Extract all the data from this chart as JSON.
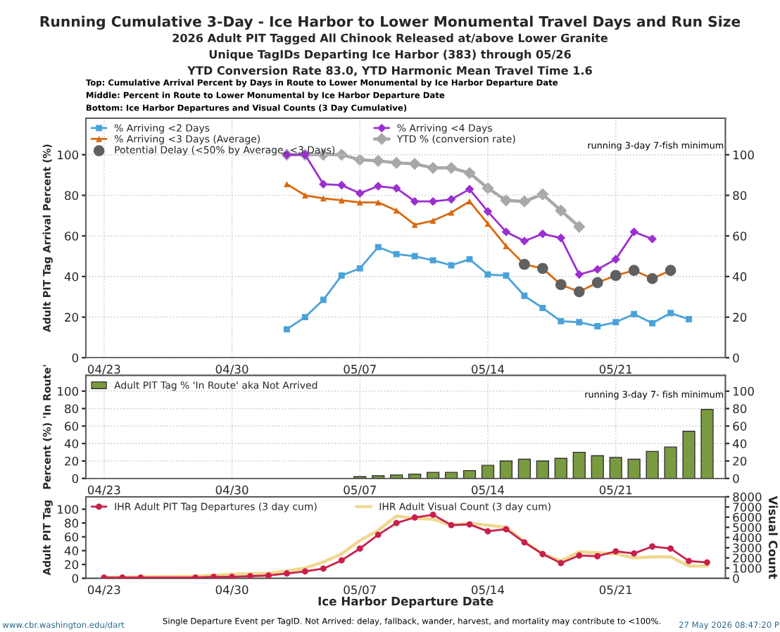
{
  "chart_data": [
    {
      "type": "line",
      "title": "Running Cumulative 3-Day - Ice Harbor to Lower Monumental Travel Days and Run Size",
      "subtitle": "2026 Adult PIT Tagged All Chinook Released at/above Lower Granite\nUnique TagIDs Departing Ice Harbor (383) through 05/26\nYTD Conversion Rate 83.0, YTD Harmonic Mean Travel Time 1.6",
      "ylabel": "Adult PIT Tag Arrival Percent (%)",
      "xlim": [
        "2026-04-22",
        "2026-05-27"
      ],
      "xticks": [
        {
          "value": "2026-04-23",
          "label": "04/23"
        },
        {
          "value": "2026-04-30",
          "label": "04/30"
        },
        {
          "value": "2026-05-07",
          "label": "05/07"
        },
        {
          "value": "2026-05-14",
          "label": "05/14"
        },
        {
          "value": "2026-05-21",
          "label": "05/21"
        }
      ],
      "ylim": [
        0,
        118
      ],
      "yticks": [
        0,
        20,
        40,
        60,
        80,
        100
      ],
      "y2lim": [
        0,
        118
      ],
      "y2ticks": [
        0,
        20,
        40,
        60,
        80,
        100
      ],
      "grid": true,
      "legend": "top left",
      "annotations": [
        "Top: Cumulative Arrival Percent by Days in Route to Lower Monumental by Ice Harbor Departure Date",
        "Middle: Percent in Route to Lower Monumental by Ice Harbor Departure Date",
        "Bottom: Ice Harbor Departures and Visual Counts (3 Day Cumulative)",
        "running 3-day 7-fish minimum"
      ],
      "series": [
        {
          "name": "% Arriving <2 Days",
          "color": "#4aa3d8",
          "marker": "square",
          "x": [
            "2026-05-03",
            "2026-05-04",
            "2026-05-05",
            "2026-05-06",
            "2026-05-07",
            "2026-05-08",
            "2026-05-09",
            "2026-05-10",
            "2026-05-11",
            "2026-05-12",
            "2026-05-13",
            "2026-05-14",
            "2026-05-15",
            "2026-05-16",
            "2026-05-17",
            "2026-05-18",
            "2026-05-19",
            "2026-05-20",
            "2026-05-21",
            "2026-05-22",
            "2026-05-23",
            "2026-05-24",
            "2026-05-25"
          ],
          "values": [
            14,
            20,
            28.5,
            40.5,
            44,
            54.5,
            51,
            50,
            48,
            45.5,
            48.5,
            41,
            40.5,
            30.5,
            24.5,
            18,
            17.5,
            15.5,
            17.5,
            21.5,
            17,
            22,
            19
          ]
        },
        {
          "name": "% Arriving <3 Days (Average)",
          "color": "#d96a10",
          "marker": "triangle",
          "x": [
            "2026-05-03",
            "2026-05-04",
            "2026-05-05",
            "2026-05-06",
            "2026-05-07",
            "2026-05-08",
            "2026-05-09",
            "2026-05-10",
            "2026-05-11",
            "2026-05-12",
            "2026-05-13",
            "2026-05-14",
            "2026-05-15",
            "2026-05-16",
            "2026-05-17",
            "2026-05-18",
            "2026-05-19",
            "2026-05-20",
            "2026-05-21",
            "2026-05-22",
            "2026-05-23",
            "2026-05-24"
          ],
          "values": [
            85.5,
            80,
            78.5,
            77.5,
            76.5,
            76.5,
            72.5,
            65.5,
            67.5,
            71.5,
            77,
            66,
            55,
            46,
            44,
            36,
            32.5,
            37,
            40.5,
            43,
            39,
            43
          ]
        },
        {
          "name": "Potential Delay (<50% by Average, <3 Days)",
          "type": "scatter",
          "color": "#606060",
          "marker": "circle",
          "x": [
            "2026-05-16",
            "2026-05-17",
            "2026-05-18",
            "2026-05-19",
            "2026-05-20",
            "2026-05-21",
            "2026-05-22",
            "2026-05-23",
            "2026-05-24"
          ],
          "values": [
            46,
            44,
            36,
            32.5,
            37,
            40.5,
            43,
            39,
            43
          ]
        },
        {
          "name": "% Arriving <4 Days",
          "color": "#9b2fd0",
          "marker": "diamond",
          "x": [
            "2026-05-03",
            "2026-05-04",
            "2026-05-05",
            "2026-05-06",
            "2026-05-07",
            "2026-05-08",
            "2026-05-09",
            "2026-05-10",
            "2026-05-11",
            "2026-05-12",
            "2026-05-13",
            "2026-05-14",
            "2026-05-15",
            "2026-05-16",
            "2026-05-17",
            "2026-05-18",
            "2026-05-19",
            "2026-05-20",
            "2026-05-21",
            "2026-05-22",
            "2026-05-23"
          ],
          "values": [
            100,
            100,
            85.5,
            85,
            81,
            84.5,
            83.5,
            77,
            77,
            78,
            83,
            72,
            62,
            57.5,
            61,
            59,
            41,
            43.5,
            48.5,
            62,
            58.5
          ]
        },
        {
          "name": "YTD % (conversion rate)",
          "color": "#a8a8a8",
          "marker": "diamond",
          "axis": "y2",
          "x": [
            "2026-05-03",
            "2026-05-04",
            "2026-05-05",
            "2026-05-06",
            "2026-05-07",
            "2026-05-08",
            "2026-05-09",
            "2026-05-10",
            "2026-05-11",
            "2026-05-12",
            "2026-05-13",
            "2026-05-14",
            "2026-05-15",
            "2026-05-16",
            "2026-05-17",
            "2026-05-18",
            "2026-05-19"
          ],
          "values": [
            100,
            100,
            100,
            100,
            97.5,
            97,
            96,
            95.5,
            93.5,
            93.5,
            91,
            83.5,
            77.5,
            77,
            80.5,
            72.5,
            64.5
          ]
        }
      ]
    },
    {
      "type": "bar",
      "ylabel": "Percent (%) 'In Route'",
      "xlim": [
        "2026-04-22",
        "2026-05-27"
      ],
      "xticks": [
        {
          "value": "2026-04-23",
          "label": "04/23"
        },
        {
          "value": "2026-04-30",
          "label": "04/30"
        },
        {
          "value": "2026-05-07",
          "label": "05/07"
        },
        {
          "value": "2026-05-14",
          "label": "05/14"
        },
        {
          "value": "2026-05-21",
          "label": "05/21"
        }
      ],
      "ylim": [
        0,
        118
      ],
      "yticks": [
        0,
        20,
        40,
        60,
        80,
        100
      ],
      "y2lim": [
        0,
        118
      ],
      "y2ticks": [
        0,
        20,
        40,
        60,
        80,
        100
      ],
      "grid": true,
      "legend": "top left",
      "annotations": [
        "running 3-day 7- fish minimum"
      ],
      "series": [
        {
          "name": "Adult PIT Tag % 'In Route' aka Not Arrived",
          "color": "#7a9a40",
          "x": [
            "2026-05-07",
            "2026-05-08",
            "2026-05-09",
            "2026-05-10",
            "2026-05-11",
            "2026-05-12",
            "2026-05-13",
            "2026-05-14",
            "2026-05-15",
            "2026-05-16",
            "2026-05-17",
            "2026-05-18",
            "2026-05-19",
            "2026-05-20",
            "2026-05-21",
            "2026-05-22",
            "2026-05-23",
            "2026-05-24",
            "2026-05-25",
            "2026-05-26"
          ],
          "values": [
            2,
            3,
            4,
            5,
            7,
            7,
            9,
            15,
            20,
            22,
            20,
            23,
            30,
            26,
            24,
            22,
            31,
            36,
            54,
            79
          ]
        }
      ]
    },
    {
      "type": "line",
      "ylabel": "Adult PIT Tag",
      "y2label": "Visual Count",
      "xlabel": "Ice Harbor Departure Date",
      "xlim": [
        "2026-04-22",
        "2026-05-27"
      ],
      "xticks": [
        {
          "value": "2026-04-23",
          "label": "04/23"
        },
        {
          "value": "2026-04-30",
          "label": "04/30"
        },
        {
          "value": "2026-05-07",
          "label": "05/07"
        },
        {
          "value": "2026-05-14",
          "label": "05/14"
        },
        {
          "value": "2026-05-21",
          "label": "05/21"
        }
      ],
      "ylim": [
        0,
        118
      ],
      "yticks": [
        0,
        20,
        40,
        60,
        80,
        100
      ],
      "y2lim": [
        0,
        8000
      ],
      "y2ticks": [
        0,
        1000,
        2000,
        3000,
        4000,
        5000,
        6000,
        7000,
        8000
      ],
      "grid": false,
      "legend": "top left",
      "annotations": [
        "www.cbr.washington.edu/dart",
        "Single Departure Event per TagID. Not Arrived: delay, fallback, wander, harvest, and mortality may contribute to <100%.",
        "27 May 2026 08:47:20 P"
      ],
      "series": [
        {
          "name": "IHR Adult PIT Tag Departures (3 day cum)",
          "color": "#c8204a",
          "marker": "circle",
          "x": [
            "2026-04-23",
            "2026-04-24",
            "2026-04-25",
            "2026-04-28",
            "2026-04-29",
            "2026-04-30",
            "2026-05-01",
            "2026-05-02",
            "2026-05-03",
            "2026-05-04",
            "2026-05-05",
            "2026-05-06",
            "2026-05-07",
            "2026-05-08",
            "2026-05-09",
            "2026-05-10",
            "2026-05-11",
            "2026-05-12",
            "2026-05-13",
            "2026-05-14",
            "2026-05-15",
            "2026-05-16",
            "2026-05-17",
            "2026-05-18",
            "2026-05-19",
            "2026-05-20",
            "2026-05-21",
            "2026-05-22",
            "2026-05-23",
            "2026-05-24",
            "2026-05-25",
            "2026-05-26"
          ],
          "values": [
            1,
            1,
            1,
            1,
            2,
            2,
            3,
            4,
            7,
            10,
            14,
            26,
            43,
            63,
            80,
            88,
            92,
            77,
            78,
            68,
            71,
            52,
            35,
            22,
            33,
            32,
            39,
            36,
            46,
            43,
            25,
            23
          ]
        },
        {
          "name": "IHR Adult Visual Count (3 day cum)",
          "color": "#f0d890",
          "axis": "y2",
          "x": [
            "2026-04-23",
            "2026-04-28",
            "2026-04-30",
            "2026-05-02",
            "2026-05-03",
            "2026-05-04",
            "2026-05-05",
            "2026-05-06",
            "2026-05-07",
            "2026-05-08",
            "2026-05-09",
            "2026-05-10",
            "2026-05-11",
            "2026-05-12",
            "2026-05-13",
            "2026-05-14",
            "2026-05-15",
            "2026-05-16",
            "2026-05-17",
            "2026-05-18",
            "2026-05-19",
            "2026-05-20",
            "2026-05-21",
            "2026-05-22",
            "2026-05-23",
            "2026-05-24",
            "2026-05-25",
            "2026-05-26"
          ],
          "values": [
            100,
            200,
            400,
            500,
            700,
            1000,
            1600,
            2400,
            3700,
            4700,
            6100,
            5900,
            5800,
            5200,
            5400,
            5200,
            5000,
            3600,
            2400,
            1700,
            2600,
            2500,
            2400,
            2000,
            2100,
            2100,
            1200,
            1200
          ]
        }
      ]
    }
  ]
}
